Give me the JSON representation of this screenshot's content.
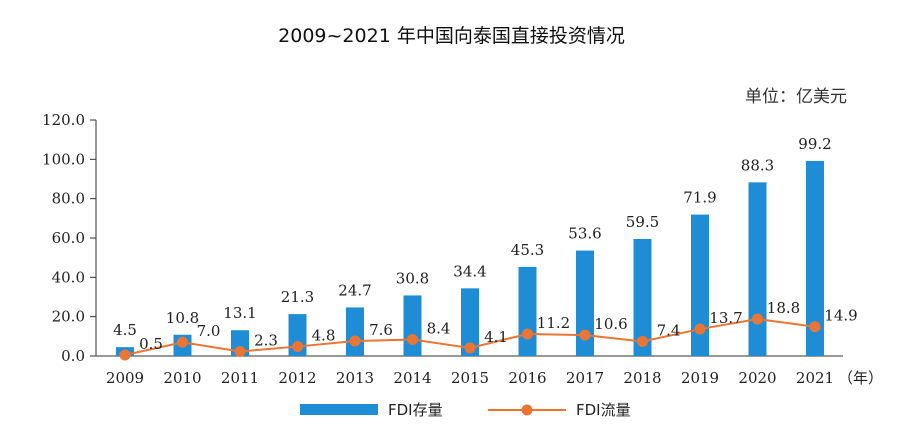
{
  "title": "2009~2021 年中国向泰国直接投资情况",
  "unit_label": "单位：亿美元",
  "x_unit_suffix": "（年）",
  "colors": {
    "bar": "#1f8dd6",
    "line": "#ea7535",
    "axis": "#333333"
  },
  "chart_data": {
    "type": "bar",
    "title": "2009~2021 年中国向泰国直接投资情况",
    "xlabel": "（年）",
    "ylabel": "单位：亿美元",
    "ylim": [
      0,
      120
    ],
    "y_ticks": [
      "0.0",
      "20.0",
      "40.0",
      "60.0",
      "80.0",
      "100.0",
      "120.0"
    ],
    "categories": [
      "2009",
      "2010",
      "2011",
      "2012",
      "2013",
      "2014",
      "2015",
      "2016",
      "2017",
      "2018",
      "2019",
      "2020",
      "2021"
    ],
    "legend_position": "bottom",
    "series": [
      {
        "name": "FDI存量",
        "type": "bar",
        "values": [
          4.5,
          10.8,
          13.1,
          21.3,
          24.7,
          30.8,
          34.4,
          45.3,
          53.6,
          59.5,
          71.9,
          88.3,
          99.2
        ],
        "labels": [
          "4.5",
          "10.8",
          "13.1",
          "21.3",
          "24.7",
          "30.8",
          "34.4",
          "45.3",
          "53.6",
          "59.5",
          "71.9",
          "88.3",
          "99.2"
        ]
      },
      {
        "name": "FDI流量",
        "type": "line",
        "values": [
          0.5,
          7.0,
          2.3,
          4.8,
          7.6,
          8.4,
          4.1,
          11.2,
          10.6,
          7.4,
          13.7,
          18.8,
          14.9
        ],
        "labels": [
          "0.5",
          "7.0",
          "2.3",
          "4.8",
          "7.6",
          "8.4",
          "4.1",
          "11.2",
          "10.6",
          "7.4",
          "13.7",
          "18.8",
          "14.9"
        ]
      }
    ]
  }
}
